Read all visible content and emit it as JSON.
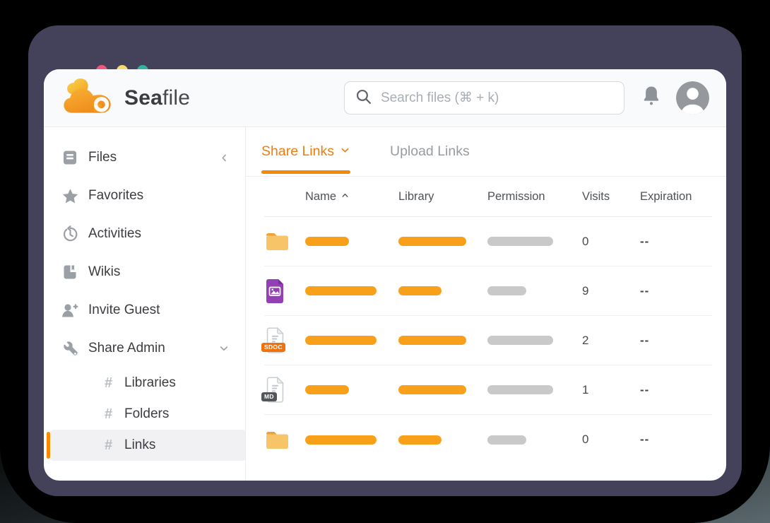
{
  "window": {
    "frame_color": "#44415a",
    "traffic_lights": [
      {
        "name": "close",
        "color": "#f1567d"
      },
      {
        "name": "minimize",
        "color": "#f3db6c"
      },
      {
        "name": "zoom",
        "color": "#30b39e"
      }
    ]
  },
  "header": {
    "logo": {
      "icon": "seafile-cloud-icon",
      "text_bold": "Sea",
      "text_light": "file"
    },
    "search": {
      "icon": "search-icon",
      "placeholder": "Search files (⌘ + k)",
      "value": ""
    },
    "notification_icon": "bell-icon",
    "avatar_icon": "user-avatar-icon"
  },
  "sidebar": {
    "items": [
      {
        "label": "Files",
        "icon": "files-icon",
        "trailing_icon": "chevron-left-icon"
      },
      {
        "label": "Favorites",
        "icon": "star-icon"
      },
      {
        "label": "Activities",
        "icon": "history-icon"
      },
      {
        "label": "Wikis",
        "icon": "wiki-book-icon"
      },
      {
        "label": "Invite Guest",
        "icon": "invite-guest-icon"
      },
      {
        "label": "Share Admin",
        "icon": "wrench-icon",
        "trailing_icon": "chevron-down-icon"
      }
    ],
    "share_admin_children": [
      {
        "label": "Libraries",
        "icon": "hash-icon",
        "active": false
      },
      {
        "label": "Folders",
        "icon": "hash-icon",
        "active": false
      },
      {
        "label": "Links",
        "icon": "hash-icon",
        "active": true
      }
    ],
    "active_accent_color": "#ff8a00",
    "active_background": "#f1f1f3"
  },
  "main": {
    "accent_color": "#f0890c",
    "tabs": [
      {
        "label": "Share Links",
        "active": true,
        "trailing_icon": "chevron-down-icon"
      },
      {
        "label": "Upload Links",
        "active": false
      }
    ],
    "table": {
      "columns": [
        "Name",
        "Library",
        "Permission",
        "Visits",
        "Expiration"
      ],
      "sort": {
        "column": "Name",
        "direction": "ascending",
        "icon": "sort-caret-up-icon"
      },
      "bar_colors": {
        "name": "#f9a01b",
        "library": "#f9a01b",
        "permission": "#c9c9c9"
      },
      "rows": [
        {
          "icon": "folder-icon",
          "badge": "",
          "name_bar_w": 62,
          "library_bar_w": 96,
          "permission_bar_w": 93,
          "visits": "0",
          "expiration": "--"
        },
        {
          "icon": "image-file-icon",
          "badge": "",
          "name_bar_w": 101,
          "library_bar_w": 61,
          "permission_bar_w": 55,
          "visits": "9",
          "expiration": "--"
        },
        {
          "icon": "sdoc-file-icon",
          "badge": "SDOC",
          "name_bar_w": 101,
          "library_bar_w": 96,
          "permission_bar_w": 93,
          "visits": "2",
          "expiration": "--"
        },
        {
          "icon": "md-file-icon",
          "badge": "MD",
          "name_bar_w": 62,
          "library_bar_w": 96,
          "permission_bar_w": 93,
          "visits": "1",
          "expiration": "--"
        },
        {
          "icon": "folder-icon",
          "badge": "",
          "name_bar_w": 101,
          "library_bar_w": 61,
          "permission_bar_w": 55,
          "visits": "0",
          "expiration": "--"
        }
      ]
    }
  }
}
